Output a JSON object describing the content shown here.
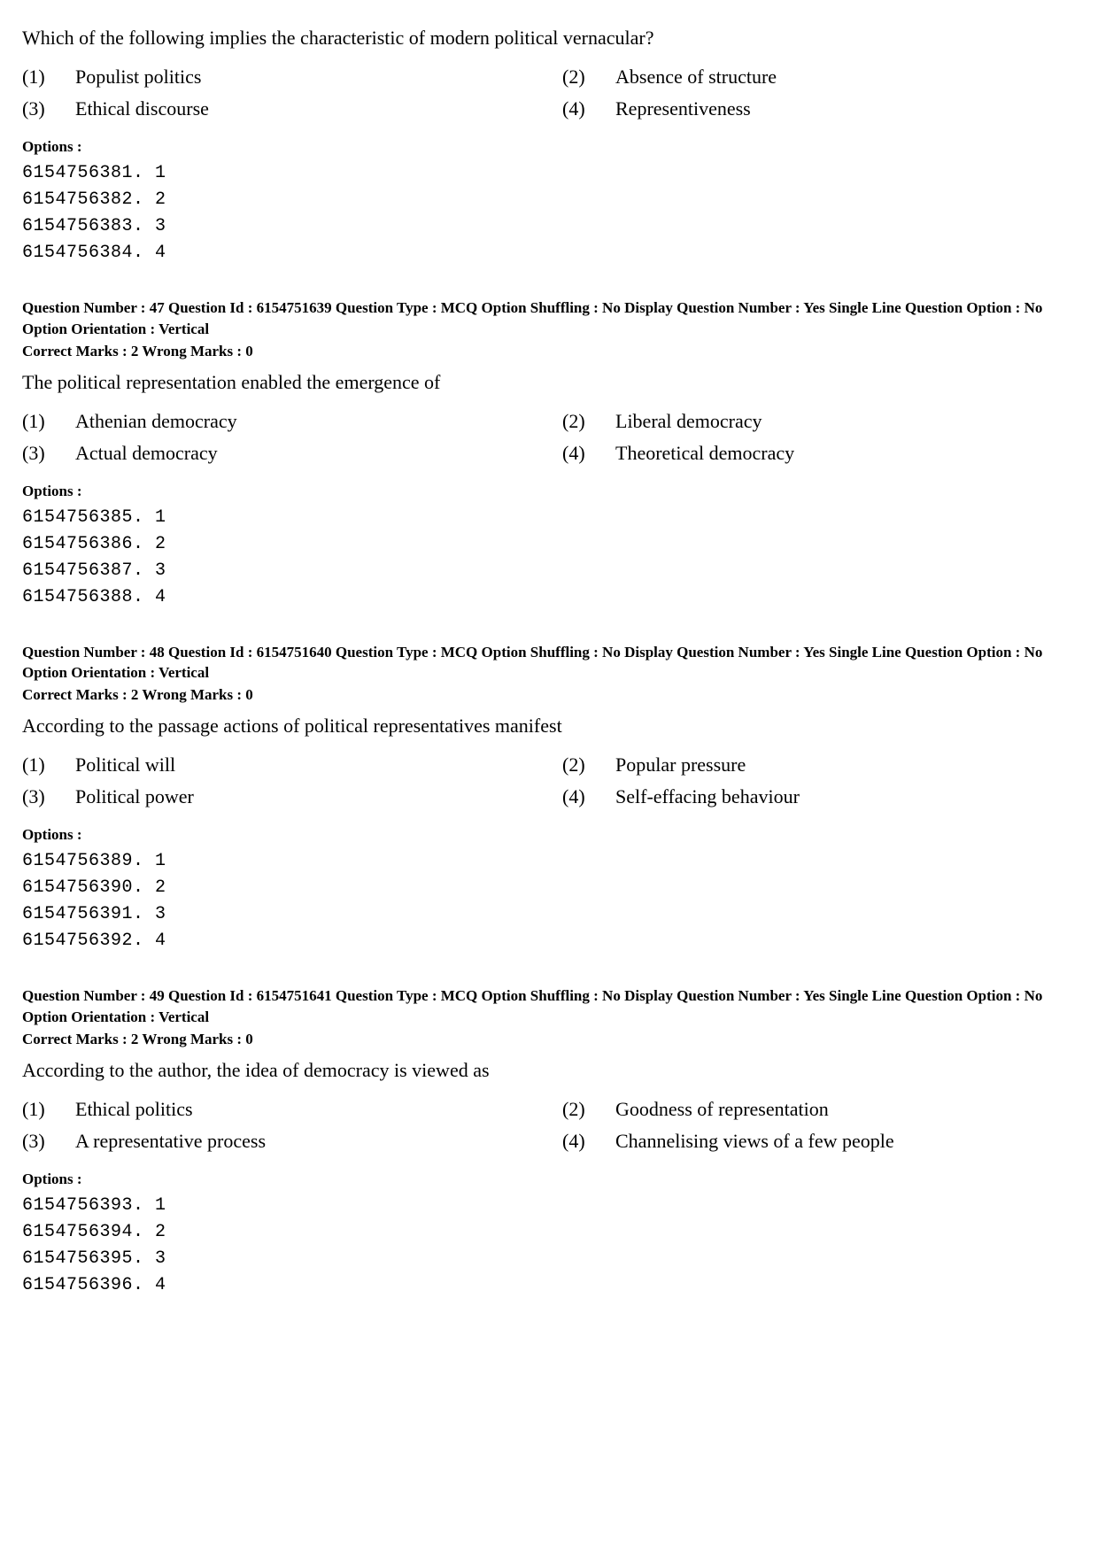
{
  "q_first": {
    "text": "Which of the following implies the characteristic of modern political vernacular?",
    "choices": [
      {
        "num": "(1)",
        "text": "Populist politics"
      },
      {
        "num": "(2)",
        "text": "Absence of structure"
      },
      {
        "num": "(3)",
        "text": "Ethical discourse"
      },
      {
        "num": "(4)",
        "text": "Representiveness"
      }
    ],
    "options_label": "Options :",
    "options": [
      "6154756381. 1",
      "6154756382. 2",
      "6154756383. 3",
      "6154756384. 4"
    ]
  },
  "q47": {
    "meta": "Question Number : 47  Question Id : 6154751639  Question Type : MCQ  Option Shuffling : No  Display Question Number : Yes Single Line Question Option : No  Option Orientation : Vertical",
    "marks": "Correct Marks : 2  Wrong Marks : 0",
    "text": "The political representation enabled the emergence of",
    "choices": [
      {
        "num": "(1)",
        "text": "Athenian democracy"
      },
      {
        "num": "(2)",
        "text": "Liberal democracy"
      },
      {
        "num": "(3)",
        "text": "Actual democracy"
      },
      {
        "num": "(4)",
        "text": "Theoretical democracy"
      }
    ],
    "options_label": "Options :",
    "options": [
      "6154756385. 1",
      "6154756386. 2",
      "6154756387. 3",
      "6154756388. 4"
    ]
  },
  "q48": {
    "meta": "Question Number : 48  Question Id : 6154751640  Question Type : MCQ  Option Shuffling : No  Display Question Number : Yes Single Line Question Option : No  Option Orientation : Vertical",
    "marks": "Correct Marks : 2  Wrong Marks : 0",
    "text": "According to the passage actions of political representatives manifest",
    "choices": [
      {
        "num": "(1)",
        "text": "Political will"
      },
      {
        "num": "(2)",
        "text": "Popular pressure"
      },
      {
        "num": "(3)",
        "text": "Political power"
      },
      {
        "num": "(4)",
        "text": "Self-effacing behaviour"
      }
    ],
    "options_label": "Options :",
    "options": [
      "6154756389. 1",
      "6154756390. 2",
      "6154756391. 3",
      "6154756392. 4"
    ]
  },
  "q49": {
    "meta": "Question Number : 49  Question Id : 6154751641  Question Type : MCQ  Option Shuffling : No  Display Question Number : Yes Single Line Question Option : No  Option Orientation : Vertical",
    "marks": "Correct Marks : 2  Wrong Marks : 0",
    "text": "According to the author, the idea of democracy is viewed as",
    "choices": [
      {
        "num": "(1)",
        "text": "Ethical politics"
      },
      {
        "num": "(2)",
        "text": "Goodness of representation"
      },
      {
        "num": "(3)",
        "text": "A representative process"
      },
      {
        "num": "(4)",
        "text": "Channelising views of a few people"
      }
    ],
    "options_label": "Options :",
    "options": [
      "6154756393. 1",
      "6154756394. 2",
      "6154756395. 3",
      "6154756396. 4"
    ]
  }
}
